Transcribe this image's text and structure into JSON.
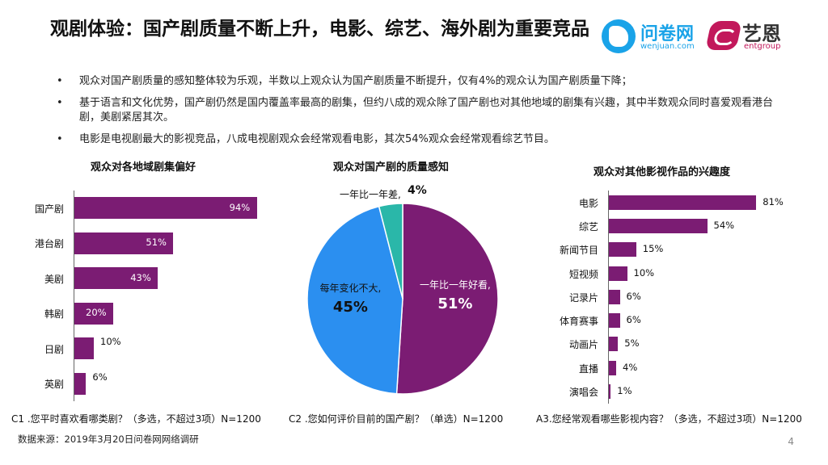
{
  "header": {
    "title": "观剧体验：国产剧质量不断上升，电影、综艺、海外剧为重要竞品",
    "logo_wenjuan_cn": "问卷网",
    "logo_wenjuan_en": "wenjuan.com",
    "logo_entgroup_cn": "艺恩",
    "logo_entgroup_en": "entgroup"
  },
  "bullets": [
    "观众对国产剧质量的感知整体较为乐观，半数以上观众认为国产剧质量不断提升，仅有4%的观众认为国产剧质量下降；",
    "基于语言和文化优势，国产剧仍然是国内覆盖率最高的剧集，但约八成的观众除了国产剧也对其他地域的剧集有兴趣，其中半数观众同时喜爱观看港台剧，美剧紧居其次。",
    "电影是电视剧最大的影视竞品，八成电视剧观众会经常观看电影，其次54%观众会经常观看综艺节目。"
  ],
  "bullet_mark": "•",
  "chart_data": [
    {
      "type": "bar",
      "orientation": "horizontal",
      "title": "观众对各地域剧集偏好",
      "categories": [
        "国产剧",
        "港台剧",
        "美剧",
        "韩剧",
        "日剧",
        "英剧"
      ],
      "values": [
        94,
        51,
        43,
        20,
        10,
        6
      ],
      "labels": [
        "94%",
        "51%",
        "43%",
        "20%",
        "10%",
        "6%"
      ],
      "color": "#7b1c73",
      "note": "C1 .您平时喜欢看哪类剧？（多选，不超过3项）N=1200"
    },
    {
      "type": "pie",
      "title": "观众对国产剧的质量感知",
      "slices": [
        {
          "label": "一年比一年好看,",
          "value": 51,
          "pct": "51%",
          "color": "#7b1c73"
        },
        {
          "label": "每年变化不大,",
          "value": 45,
          "pct": "45%",
          "color": "#2b8ff0"
        },
        {
          "label": "一年比一年差,",
          "value": 4,
          "pct": "4%",
          "color": "#2ab7a9"
        }
      ],
      "note": "C2 .您如何评价目前的国产剧？（单选）N=1200"
    },
    {
      "type": "bar",
      "orientation": "horizontal",
      "title": "观众对其他影视作品的兴趣度",
      "categories": [
        "电影",
        "综艺",
        "新闻节目",
        "短视频",
        "记录片",
        "体育赛事",
        "动画片",
        "直播",
        "演唱会"
      ],
      "values": [
        81,
        54,
        15,
        10,
        6,
        6,
        5,
        4,
        1
      ],
      "labels": [
        "81%",
        "54%",
        "15%",
        "10%",
        "6%",
        "6%",
        "5%",
        "4%",
        "1%"
      ],
      "color": "#7b1c73",
      "note": "A3.您经常观看哪些影视内容？（多选，不超过3项）N=1200"
    }
  ],
  "footer": {
    "source": "数据来源：2019年3月20日问卷网网络调研",
    "page_number": "4"
  }
}
